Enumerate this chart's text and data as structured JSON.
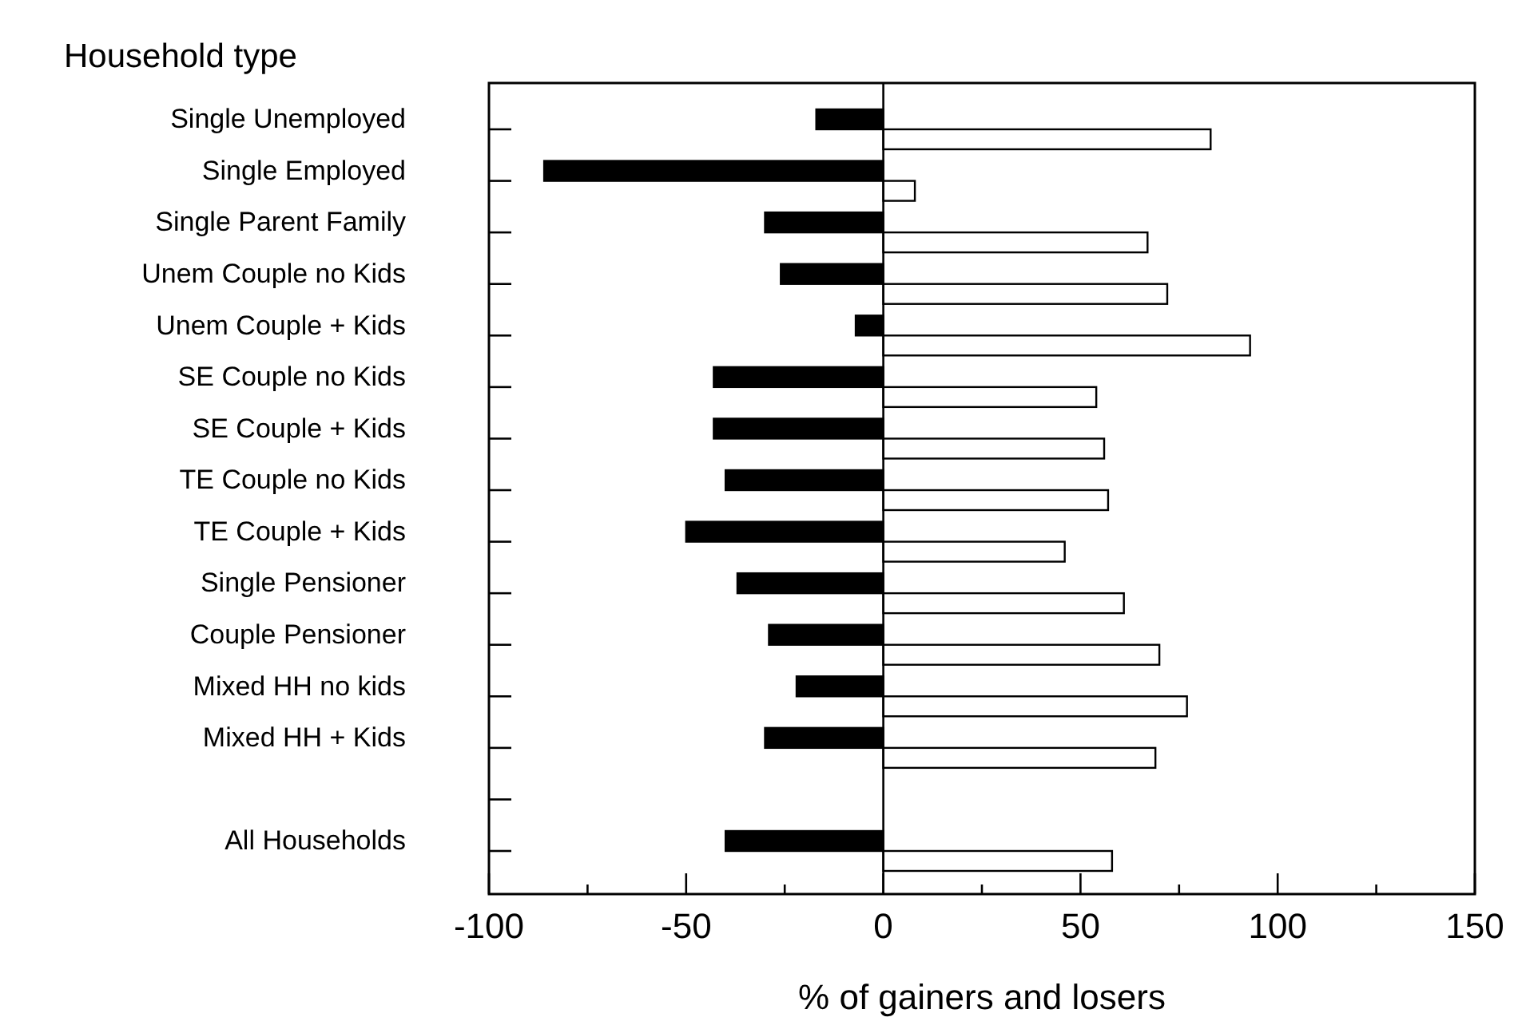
{
  "chart_data": {
    "type": "bar",
    "orientation": "horizontal",
    "title": "Household type",
    "xlabel": "% of gainers and losers",
    "categories": [
      "Single Unemployed",
      "Single Employed",
      "Single Parent Family",
      "Unem Couple no Kids",
      "Unem Couple + Kids",
      "SE Couple no Kids",
      "SE Couple + Kids",
      "TE Couple no Kids",
      "TE Couple + Kids",
      "Single Pensioner",
      "Couple Pensioner",
      "Mixed HH no kids",
      "Mixed HH + Kids",
      null,
      "All Households"
    ],
    "series": [
      {
        "color": "#000000",
        "values": [
          -17,
          -86,
          -30,
          -26,
          -7,
          -43,
          -43,
          -40,
          -50,
          -37,
          -29,
          -22,
          -30,
          null,
          -40
        ]
      },
      {
        "color": "#ffffff",
        "values": [
          83,
          8,
          67,
          72,
          93,
          54,
          56,
          57,
          46,
          61,
          70,
          77,
          69,
          null,
          58
        ]
      }
    ],
    "xlim": [
      -100,
      150
    ],
    "xticks": [
      -100,
      {
        "value": -75,
        "label": null
      },
      -50,
      {
        "value": -25,
        "label": null
      },
      0,
      {
        "value": 25,
        "label": null
      },
      50,
      {
        "value": 75,
        "label": null
      },
      100,
      {
        "value": 125,
        "label": null
      },
      150
    ]
  }
}
